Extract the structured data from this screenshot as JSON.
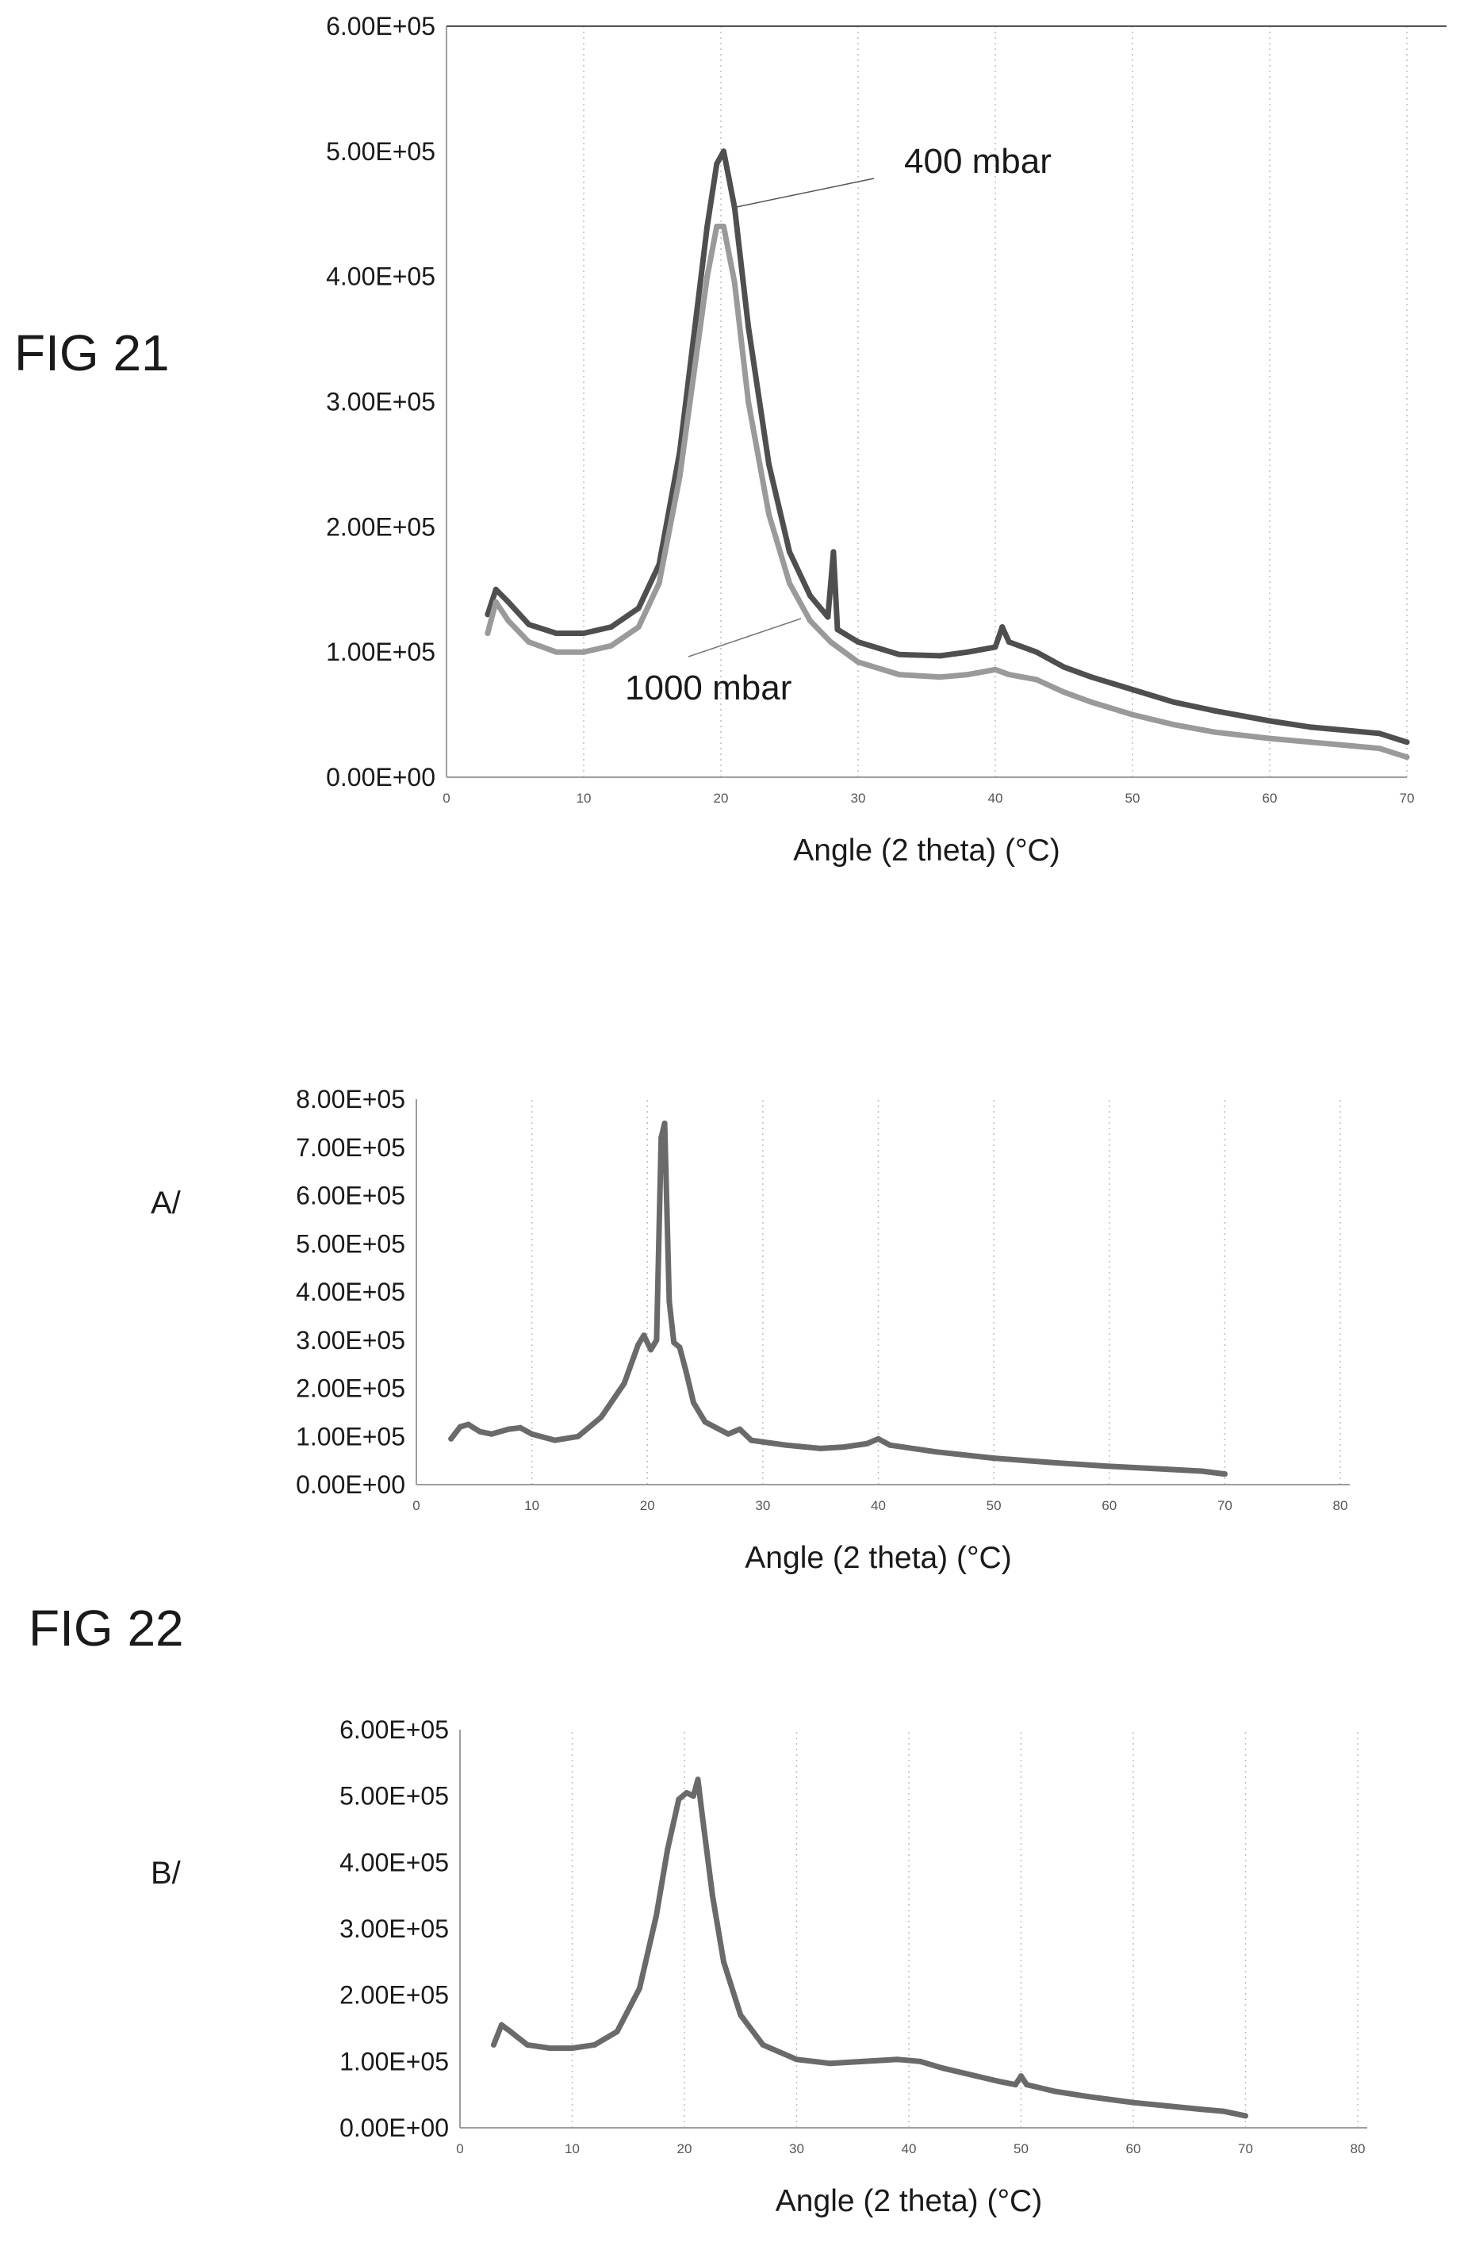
{
  "figures": {
    "fig21_label": "FIG 21",
    "fig22_label": "FIG 22",
    "panel_a_label": "A/",
    "panel_b_label": "B/"
  },
  "colors": {
    "series_dark": "#4f4f4f",
    "series_light": "#9a9a9a",
    "grid": "#bdbdbd",
    "axis": "#9e9e9e"
  },
  "chart_data": [
    {
      "id": "fig21",
      "type": "line",
      "title": "",
      "xlabel": "Angle (2 theta) (°C)",
      "ylabel": "",
      "xlim": [
        0,
        70
      ],
      "ylim": [
        0,
        600000
      ],
      "xticks": [
        0,
        10,
        20,
        30,
        40,
        50,
        60,
        70
      ],
      "xtick_labels": [
        "0",
        "10",
        "20",
        "30",
        "40",
        "50",
        "60",
        "70"
      ],
      "yticks": [
        0,
        100000,
        200000,
        300000,
        400000,
        500000,
        600000
      ],
      "ytick_labels": [
        "0.00E+00",
        "1.00E+05",
        "2.00E+05",
        "3.00E+05",
        "4.00E+05",
        "5.00E+05",
        "6.00E+05"
      ],
      "grid": "vertical dotted",
      "annotations": [
        {
          "text": "400 mbar",
          "series": "400 mbar"
        },
        {
          "text": "1000 mbar",
          "series": "1000 mbar"
        }
      ],
      "series": [
        {
          "name": "400 mbar",
          "color": "#4f4f4f",
          "points": [
            [
              3,
              130000
            ],
            [
              3.6,
              150000
            ],
            [
              4.5,
              140000
            ],
            [
              6,
              122000
            ],
            [
              8,
              115000
            ],
            [
              10,
              115000
            ],
            [
              12,
              120000
            ],
            [
              14,
              135000
            ],
            [
              15.5,
              170000
            ],
            [
              17,
              260000
            ],
            [
              18,
              350000
            ],
            [
              19,
              440000
            ],
            [
              19.7,
              490000
            ],
            [
              20.2,
              500000
            ],
            [
              21,
              455000
            ],
            [
              22,
              360000
            ],
            [
              23.5,
              250000
            ],
            [
              25,
              180000
            ],
            [
              26.5,
              145000
            ],
            [
              27.8,
              128000
            ],
            [
              28.2,
              180000
            ],
            [
              28.5,
              118000
            ],
            [
              30,
              108000
            ],
            [
              33,
              98000
            ],
            [
              36,
              97000
            ],
            [
              38,
              100000
            ],
            [
              40,
              104000
            ],
            [
              40.5,
              120000
            ],
            [
              41,
              108000
            ],
            [
              43,
              100000
            ],
            [
              45,
              88000
            ],
            [
              47,
              80000
            ],
            [
              50,
              70000
            ],
            [
              53,
              60000
            ],
            [
              56,
              53000
            ],
            [
              60,
              45000
            ],
            [
              63,
              40000
            ],
            [
              66,
              37000
            ],
            [
              68,
              35000
            ],
            [
              70,
              28000
            ]
          ]
        },
        {
          "name": "1000 mbar",
          "color": "#9a9a9a",
          "points": [
            [
              3,
              115000
            ],
            [
              3.6,
              140000
            ],
            [
              4.5,
              125000
            ],
            [
              6,
              108000
            ],
            [
              8,
              100000
            ],
            [
              10,
              100000
            ],
            [
              12,
              105000
            ],
            [
              14,
              120000
            ],
            [
              15.5,
              155000
            ],
            [
              17,
              240000
            ],
            [
              18,
              320000
            ],
            [
              19,
              400000
            ],
            [
              19.7,
              440000
            ],
            [
              20.2,
              440000
            ],
            [
              21,
              395000
            ],
            [
              22,
              300000
            ],
            [
              23.5,
              210000
            ],
            [
              25,
              155000
            ],
            [
              26.5,
              125000
            ],
            [
              28,
              108000
            ],
            [
              30,
              92000
            ],
            [
              33,
              82000
            ],
            [
              36,
              80000
            ],
            [
              38,
              82000
            ],
            [
              40,
              86000
            ],
            [
              41,
              82000
            ],
            [
              43,
              78000
            ],
            [
              45,
              68000
            ],
            [
              47,
              60000
            ],
            [
              50,
              50000
            ],
            [
              53,
              42000
            ],
            [
              56,
              36000
            ],
            [
              60,
              31000
            ],
            [
              63,
              28000
            ],
            [
              66,
              25000
            ],
            [
              68,
              23000
            ],
            [
              70,
              16000
            ]
          ]
        }
      ]
    },
    {
      "id": "fig22a",
      "type": "line",
      "title": "",
      "xlabel": "Angle (2 theta) (°C)",
      "ylabel": "",
      "xlim": [
        0,
        80
      ],
      "ylim": [
        0,
        800000
      ],
      "xticks": [
        0,
        10,
        20,
        30,
        40,
        50,
        60,
        70,
        80
      ],
      "xtick_labels": [
        "0",
        "10",
        "20",
        "30",
        "40",
        "50",
        "60",
        "70",
        "80"
      ],
      "yticks": [
        0,
        100000,
        200000,
        300000,
        400000,
        500000,
        600000,
        700000,
        800000
      ],
      "ytick_labels": [
        "0.00E+00",
        "1.00E+05",
        "2.00E+05",
        "3.00E+05",
        "4.00E+05",
        "5.00E+05",
        "6.00E+05",
        "7.00E+05",
        "8.00E+05"
      ],
      "grid": "vertical dotted",
      "series": [
        {
          "color": "#6a6a6a",
          "points": [
            [
              3,
              95000
            ],
            [
              3.8,
              120000
            ],
            [
              4.5,
              125000
            ],
            [
              5.5,
              110000
            ],
            [
              6.5,
              105000
            ],
            [
              8,
              115000
            ],
            [
              9,
              118000
            ],
            [
              10,
              105000
            ],
            [
              12,
              92000
            ],
            [
              14,
              100000
            ],
            [
              16,
              140000
            ],
            [
              18,
              210000
            ],
            [
              19.2,
              290000
            ],
            [
              19.7,
              310000
            ],
            [
              20.3,
              280000
            ],
            [
              20.8,
              300000
            ],
            [
              21.2,
              720000
            ],
            [
              21.5,
              750000
            ],
            [
              21.9,
              380000
            ],
            [
              22.3,
              295000
            ],
            [
              22.8,
              285000
            ],
            [
              23.3,
              240000
            ],
            [
              24,
              170000
            ],
            [
              25,
              130000
            ],
            [
              27,
              105000
            ],
            [
              28,
              115000
            ],
            [
              29,
              92000
            ],
            [
              32,
              82000
            ],
            [
              35,
              75000
            ],
            [
              37,
              78000
            ],
            [
              39,
              85000
            ],
            [
              40,
              95000
            ],
            [
              41,
              82000
            ],
            [
              45,
              68000
            ],
            [
              50,
              55000
            ],
            [
              55,
              46000
            ],
            [
              60,
              38000
            ],
            [
              65,
              32000
            ],
            [
              68,
              28000
            ],
            [
              70,
              22000
            ]
          ]
        }
      ]
    },
    {
      "id": "fig22b",
      "type": "line",
      "title": "",
      "xlabel": "Angle (2 theta) (°C)",
      "ylabel": "",
      "xlim": [
        0,
        80
      ],
      "ylim": [
        0,
        600000
      ],
      "xticks": [
        0,
        10,
        20,
        30,
        40,
        50,
        60,
        70,
        80
      ],
      "xtick_labels": [
        "0",
        "10",
        "20",
        "30",
        "40",
        "50",
        "60",
        "70",
        "80"
      ],
      "yticks": [
        0,
        100000,
        200000,
        300000,
        400000,
        500000,
        600000
      ],
      "ytick_labels": [
        "0.00E+00",
        "1.00E+05",
        "2.00E+05",
        "3.00E+05",
        "4.00E+05",
        "5.00E+05",
        "6.00E+05"
      ],
      "grid": "vertical dotted",
      "series": [
        {
          "color": "#6a6a6a",
          "points": [
            [
              3,
              125000
            ],
            [
              3.7,
              155000
            ],
            [
              4.5,
              145000
            ],
            [
              6,
              125000
            ],
            [
              8,
              120000
            ],
            [
              10,
              120000
            ],
            [
              12,
              125000
            ],
            [
              14,
              145000
            ],
            [
              16,
              210000
            ],
            [
              17.5,
              320000
            ],
            [
              18.5,
              420000
            ],
            [
              19.5,
              495000
            ],
            [
              20.2,
              505000
            ],
            [
              20.8,
              500000
            ],
            [
              21.2,
              525000
            ],
            [
              21.6,
              470000
            ],
            [
              22.5,
              350000
            ],
            [
              23.5,
              250000
            ],
            [
              25,
              170000
            ],
            [
              27,
              125000
            ],
            [
              30,
              103000
            ],
            [
              33,
              97000
            ],
            [
              36,
              100000
            ],
            [
              39,
              103000
            ],
            [
              41,
              100000
            ],
            [
              43,
              90000
            ],
            [
              45,
              82000
            ],
            [
              48,
              70000
            ],
            [
              49.5,
              65000
            ],
            [
              50,
              78000
            ],
            [
              50.5,
              65000
            ],
            [
              53,
              55000
            ],
            [
              56,
              47000
            ],
            [
              60,
              38000
            ],
            [
              63,
              33000
            ],
            [
              66,
              28000
            ],
            [
              68,
              25000
            ],
            [
              70,
              18000
            ]
          ]
        }
      ]
    }
  ]
}
